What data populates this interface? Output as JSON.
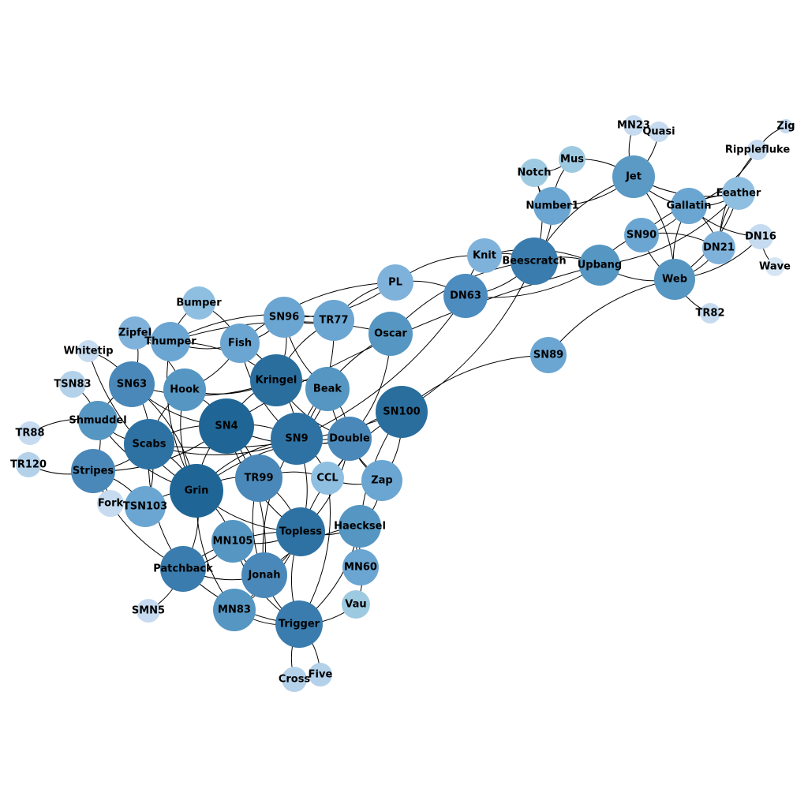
{
  "colors": {
    "background": "#ffffff",
    "edge": "#000000"
  },
  "nodes": [
    {
      "id": "Zig",
      "label": "Zig",
      "color": "#c6dbef"
    },
    {
      "id": "MN23",
      "label": "MN23",
      "color": "#c6dbef"
    },
    {
      "id": "Quasi",
      "label": "Quasi",
      "color": "#c6dbef"
    },
    {
      "id": "Ripplefluke",
      "label": "Ripplefluke",
      "color": "#c6dbef"
    },
    {
      "id": "Mus",
      "label": "Mus",
      "color": "#9ecae1"
    },
    {
      "id": "Notch",
      "label": "Notch",
      "color": "#9ecae1"
    },
    {
      "id": "Jet",
      "label": "Jet",
      "color": "#5a9ac4"
    },
    {
      "id": "Feather",
      "label": "Feather",
      "color": "#8fbfe0"
    },
    {
      "id": "Gallatin",
      "label": "Gallatin",
      "color": "#6ba6d2"
    },
    {
      "id": "Number1",
      "label": "Number1",
      "color": "#6ba6d2"
    },
    {
      "id": "DN16",
      "label": "DN16",
      "color": "#c6dbef"
    },
    {
      "id": "SN90",
      "label": "SN90",
      "color": "#6ba6d2"
    },
    {
      "id": "Wave",
      "label": "Wave",
      "color": "#d5e5f3"
    },
    {
      "id": "DN21",
      "label": "DN21",
      "color": "#7fb2db"
    },
    {
      "id": "Knit",
      "label": "Knit",
      "color": "#7fb2db"
    },
    {
      "id": "Beescratch",
      "label": "Beescratch",
      "color": "#3a7cad"
    },
    {
      "id": "Upbang",
      "label": "Upbang",
      "color": "#5596c2"
    },
    {
      "id": "Web",
      "label": "Web",
      "color": "#5596c2"
    },
    {
      "id": "PL",
      "label": "PL",
      "color": "#7fb2db"
    },
    {
      "id": "DN63",
      "label": "DN63",
      "color": "#4d8cbf"
    },
    {
      "id": "TR82",
      "label": "TR82",
      "color": "#c6dbef"
    },
    {
      "id": "Bumper",
      "label": "Bumper",
      "color": "#8fbfe0"
    },
    {
      "id": "SN96",
      "label": "SN96",
      "color": "#6ba6d2"
    },
    {
      "id": "TR77",
      "label": "TR77",
      "color": "#6ba6d2"
    },
    {
      "id": "Zipfel",
      "label": "Zipfel",
      "color": "#7fb2db"
    },
    {
      "id": "Oscar",
      "label": "Oscar",
      "color": "#5596c2"
    },
    {
      "id": "Thumper",
      "label": "Thumper",
      "color": "#6ba6d2"
    },
    {
      "id": "Fish",
      "label": "Fish",
      "color": "#6ba6d2"
    },
    {
      "id": "Whitetip",
      "label": "Whitetip",
      "color": "#c6dbef"
    },
    {
      "id": "SN89",
      "label": "SN89",
      "color": "#6ba6d2"
    },
    {
      "id": "TSN83",
      "label": "TSN83",
      "color": "#b4d1ea"
    },
    {
      "id": "SN63",
      "label": "SN63",
      "color": "#4a88b9"
    },
    {
      "id": "Kringel",
      "label": "Kringel",
      "color": "#2a6e9e"
    },
    {
      "id": "Hook",
      "label": "Hook",
      "color": "#5596c2"
    },
    {
      "id": "Beak",
      "label": "Beak",
      "color": "#5596c2"
    },
    {
      "id": "SN100",
      "label": "SN100",
      "color": "#2a6e9e"
    },
    {
      "id": "Shmuddel",
      "label": "Shmuddel",
      "color": "#5596c2"
    },
    {
      "id": "SN4",
      "label": "SN4",
      "color": "#1f6696"
    },
    {
      "id": "TR88",
      "label": "TR88",
      "color": "#c6dbef"
    },
    {
      "id": "Scabs",
      "label": "Scabs",
      "color": "#2e72a3"
    },
    {
      "id": "SN9",
      "label": "SN9",
      "color": "#2e72a3"
    },
    {
      "id": "Double",
      "label": "Double",
      "color": "#4a88b9"
    },
    {
      "id": "TR120",
      "label": "TR120",
      "color": "#b4d1ea"
    },
    {
      "id": "Stripes",
      "label": "Stripes",
      "color": "#4a88b9"
    },
    {
      "id": "CCL",
      "label": "CCL",
      "color": "#8fbfe0"
    },
    {
      "id": "Zap",
      "label": "Zap",
      "color": "#6ba6d2"
    },
    {
      "id": "TR99",
      "label": "TR99",
      "color": "#4a88b9"
    },
    {
      "id": "Grin",
      "label": "Grin",
      "color": "#1f6696"
    },
    {
      "id": "Fork",
      "label": "Fork",
      "color": "#c6dbef"
    },
    {
      "id": "TSN103",
      "label": "TSN103",
      "color": "#6ba6d2"
    },
    {
      "id": "Haecksel",
      "label": "Haecksel",
      "color": "#5596c2"
    },
    {
      "id": "Topless",
      "label": "Topless",
      "color": "#2e72a3"
    },
    {
      "id": "MN105",
      "label": "MN105",
      "color": "#5596c2"
    },
    {
      "id": "MN60",
      "label": "MN60",
      "color": "#6ba6d2"
    },
    {
      "id": "Patchback",
      "label": "Patchback",
      "color": "#3a7cad"
    },
    {
      "id": "Jonah",
      "label": "Jonah",
      "color": "#4a88b9"
    },
    {
      "id": "Vau",
      "label": "Vau",
      "color": "#9ecae1"
    },
    {
      "id": "SMN5",
      "label": "SMN5",
      "color": "#c6dbef"
    },
    {
      "id": "MN83",
      "label": "MN83",
      "color": "#5596c2"
    },
    {
      "id": "Trigger",
      "label": "Trigger",
      "color": "#3a7cad"
    },
    {
      "id": "Five",
      "label": "Five",
      "color": "#b4d1ea"
    },
    {
      "id": "Cross",
      "label": "Cross",
      "color": "#b4d1ea"
    }
  ],
  "edges": [
    [
      "MN23",
      "Jet"
    ],
    [
      "Quasi",
      "Jet"
    ],
    [
      "Zig",
      "Ripplefluke"
    ],
    [
      "Ripplefluke",
      "Gallatin"
    ],
    [
      "Ripplefluke",
      "DN21"
    ],
    [
      "Mus",
      "Notch"
    ],
    [
      "Mus",
      "Number1"
    ],
    [
      "Mus",
      "Jet"
    ],
    [
      "Notch",
      "Number1"
    ],
    [
      "Notch",
      "Beescratch"
    ],
    [
      "Jet",
      "Gallatin"
    ],
    [
      "Jet",
      "Number1"
    ],
    [
      "Jet",
      "Feather"
    ],
    [
      "Jet",
      "Web"
    ],
    [
      "Jet",
      "Beescratch"
    ],
    [
      "Feather",
      "Gallatin"
    ],
    [
      "Feather",
      "DN21"
    ],
    [
      "Feather",
      "Web"
    ],
    [
      "Feather",
      "SN90"
    ],
    [
      "Feather",
      "Upbang"
    ],
    [
      "Gallatin",
      "DN16"
    ],
    [
      "Gallatin",
      "DN21"
    ],
    [
      "Gallatin",
      "Web"
    ],
    [
      "Gallatin",
      "SN90"
    ],
    [
      "DN16",
      "Wave"
    ],
    [
      "DN16",
      "Web"
    ],
    [
      "SN90",
      "Upbang"
    ],
    [
      "SN90",
      "DN21"
    ],
    [
      "SN90",
      "Web"
    ],
    [
      "DN21",
      "Web"
    ],
    [
      "Web",
      "TR82"
    ],
    [
      "Web",
      "Upbang"
    ],
    [
      "Web",
      "SN89"
    ],
    [
      "Knit",
      "Beescratch"
    ],
    [
      "Knit",
      "PL"
    ],
    [
      "Knit",
      "Upbang"
    ],
    [
      "Knit",
      "DN63"
    ],
    [
      "Beescratch",
      "Upbang"
    ],
    [
      "Beescratch",
      "Oscar"
    ],
    [
      "Beescratch",
      "SN100"
    ],
    [
      "Beescratch",
      "Number1"
    ],
    [
      "Beescratch",
      "DN63"
    ],
    [
      "Upbang",
      "SN4"
    ],
    [
      "PL",
      "DN63"
    ],
    [
      "PL",
      "TR77"
    ],
    [
      "PL",
      "SN96"
    ],
    [
      "PL",
      "Fish"
    ],
    [
      "DN63",
      "SN9"
    ],
    [
      "Bumper",
      "Thumper"
    ],
    [
      "Bumper",
      "Fish"
    ],
    [
      "SN96",
      "TR77"
    ],
    [
      "SN96",
      "Fish"
    ],
    [
      "SN96",
      "Beak"
    ],
    [
      "SN96",
      "Kringel"
    ],
    [
      "TR77",
      "Thumper"
    ],
    [
      "TR77",
      "SN9"
    ],
    [
      "TR77",
      "Kringel"
    ],
    [
      "Zipfel",
      "SN63"
    ],
    [
      "Zipfel",
      "Thumper"
    ],
    [
      "Zipfel",
      "Hook"
    ],
    [
      "Thumper",
      "Fish"
    ],
    [
      "Thumper",
      "Kringel"
    ],
    [
      "Thumper",
      "Grin"
    ],
    [
      "Fish",
      "Kringel"
    ],
    [
      "Fish",
      "SN9"
    ],
    [
      "Fish",
      "Hook"
    ],
    [
      "Oscar",
      "SN9"
    ],
    [
      "Oscar",
      "Double"
    ],
    [
      "Oscar",
      "Thumper"
    ],
    [
      "Whitetip",
      "SN63"
    ],
    [
      "Whitetip",
      "Grin"
    ],
    [
      "TSN83",
      "Shmuddel"
    ],
    [
      "SN63",
      "Shmuddel"
    ],
    [
      "SN63",
      "Scabs"
    ],
    [
      "SN63",
      "Kringel"
    ],
    [
      "SN63",
      "Grin"
    ],
    [
      "SN63",
      "SN4"
    ],
    [
      "Kringel",
      "Beak"
    ],
    [
      "Kringel",
      "SN4"
    ],
    [
      "Kringel",
      "SN9"
    ],
    [
      "Kringel",
      "Double"
    ],
    [
      "Kringel",
      "Hook"
    ],
    [
      "Hook",
      "Scabs"
    ],
    [
      "Hook",
      "SN4"
    ],
    [
      "Hook",
      "Grin"
    ],
    [
      "Beak",
      "SN9"
    ],
    [
      "Beak",
      "Zap"
    ],
    [
      "Beak",
      "Double"
    ],
    [
      "SN100",
      "Double"
    ],
    [
      "SN100",
      "SN89"
    ],
    [
      "SN100",
      "Topless"
    ],
    [
      "SN100",
      "Scabs"
    ],
    [
      "SN100",
      "MN60"
    ],
    [
      "SN100",
      "Zap"
    ],
    [
      "SN4",
      "Scabs"
    ],
    [
      "SN4",
      "SN9"
    ],
    [
      "SN4",
      "Grin"
    ],
    [
      "SN4",
      "TR99"
    ],
    [
      "SN4",
      "Double"
    ],
    [
      "SN4",
      "Stripes"
    ],
    [
      "SN4",
      "Topless"
    ],
    [
      "SN4",
      "Jonah"
    ],
    [
      "Shmuddel",
      "Scabs"
    ],
    [
      "Shmuddel",
      "Stripes"
    ],
    [
      "Shmuddel",
      "Grin"
    ],
    [
      "TR88",
      "Shmuddel"
    ],
    [
      "TR120",
      "Stripes"
    ],
    [
      "Scabs",
      "Grin"
    ],
    [
      "Scabs",
      "SN9"
    ],
    [
      "Scabs",
      "TSN103"
    ],
    [
      "Scabs",
      "Patchback"
    ],
    [
      "Scabs",
      "Stripes"
    ],
    [
      "SN9",
      "Double"
    ],
    [
      "SN9",
      "Topless"
    ],
    [
      "SN9",
      "Jonah"
    ],
    [
      "SN9",
      "CCL"
    ],
    [
      "SN9",
      "Grin"
    ],
    [
      "Double",
      "CCL"
    ],
    [
      "Double",
      "Zap"
    ],
    [
      "Double",
      "Topless"
    ],
    [
      "Double",
      "Grin"
    ],
    [
      "Stripes",
      "Fork"
    ],
    [
      "Stripes",
      "Patchback"
    ],
    [
      "Stripes",
      "TSN103"
    ],
    [
      "CCL",
      "Zap"
    ],
    [
      "CCL",
      "Trigger"
    ],
    [
      "TR99",
      "Grin"
    ],
    [
      "TR99",
      "Topless"
    ],
    [
      "TR99",
      "Jonah"
    ],
    [
      "TR99",
      "CCL"
    ],
    [
      "Grin",
      "TSN103"
    ],
    [
      "Grin",
      "MN105"
    ],
    [
      "Grin",
      "Topless"
    ],
    [
      "Grin",
      "Patchback"
    ],
    [
      "Grin",
      "MN83"
    ],
    [
      "Fork",
      "TSN103"
    ],
    [
      "Haecksel",
      "Zap"
    ],
    [
      "Haecksel",
      "Topless"
    ],
    [
      "Haecksel",
      "Jonah"
    ],
    [
      "Haecksel",
      "Trigger"
    ],
    [
      "Haecksel",
      "MN60"
    ],
    [
      "Topless",
      "MN105"
    ],
    [
      "Topless",
      "Trigger"
    ],
    [
      "Topless",
      "Jonah"
    ],
    [
      "Topless",
      "Patchback"
    ],
    [
      "Topless",
      "MN83"
    ],
    [
      "MN105",
      "Jonah"
    ],
    [
      "MN105",
      "Patchback"
    ],
    [
      "MN105",
      "Trigger"
    ],
    [
      "MN60",
      "Vau"
    ],
    [
      "Patchback",
      "Jonah"
    ],
    [
      "Patchback",
      "SMN5"
    ],
    [
      "Patchback",
      "Trigger"
    ],
    [
      "Jonah",
      "MN83"
    ],
    [
      "Jonah",
      "Trigger"
    ],
    [
      "Vau",
      "Trigger"
    ],
    [
      "MN83",
      "Trigger"
    ],
    [
      "Trigger",
      "Five"
    ],
    [
      "Trigger",
      "Cross"
    ],
    [
      "Upbang",
      "DN63"
    ]
  ]
}
